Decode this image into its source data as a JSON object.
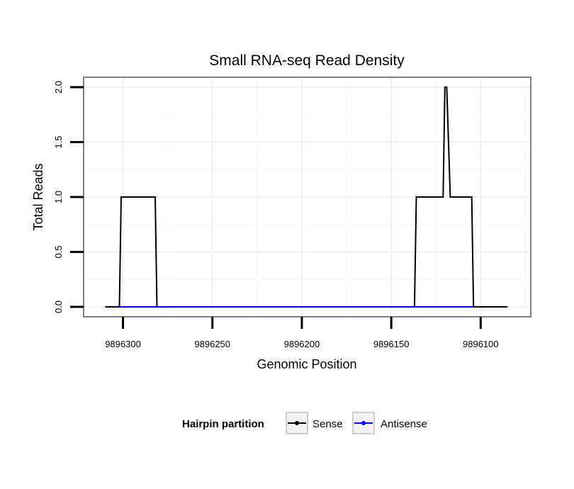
{
  "chart_data": {
    "type": "line",
    "title": "Small RNA-seq Read Density",
    "xlabel": "Genomic Position",
    "ylabel": "Total Reads",
    "x_reversed": true,
    "xlim": [
      9896322,
      9896072
    ],
    "ylim": [
      -0.09,
      2.09
    ],
    "x_ticks": [
      9896300,
      9896250,
      9896200,
      9896150,
      9896100
    ],
    "x_tick_labels": [
      "9896300",
      "9896250",
      "9896200",
      "9896150",
      "9896100"
    ],
    "y_ticks": [
      0,
      0.5,
      1,
      1.5,
      2
    ],
    "y_tick_labels": [
      "0.0",
      "0.5",
      "1.0",
      "1.5",
      "2.0"
    ],
    "grid": true,
    "legend": {
      "title": "Hairpin partition",
      "placement": "bottom",
      "entries": [
        {
          "name": "Sense",
          "color": "#000000"
        },
        {
          "name": "Antisense",
          "color": "#0000ff"
        }
      ]
    },
    "series": [
      {
        "name": "Sense",
        "color": "#000000",
        "x": [
          9896310,
          9896302,
          9896301,
          9896282,
          9896281,
          9896137,
          9896136,
          9896122,
          9896121,
          9896120,
          9896119,
          9896117,
          9896116,
          9896105,
          9896104,
          9896085
        ],
        "y": [
          0,
          0,
          1,
          1,
          0,
          0,
          1,
          1,
          1,
          2,
          2,
          1,
          1,
          1,
          0,
          0
        ]
      },
      {
        "name": "Antisense",
        "color": "#0000ff",
        "x": [
          9896302,
          9896281,
          9896137,
          9896104
        ],
        "y": [
          0,
          0,
          0,
          0
        ]
      }
    ]
  }
}
